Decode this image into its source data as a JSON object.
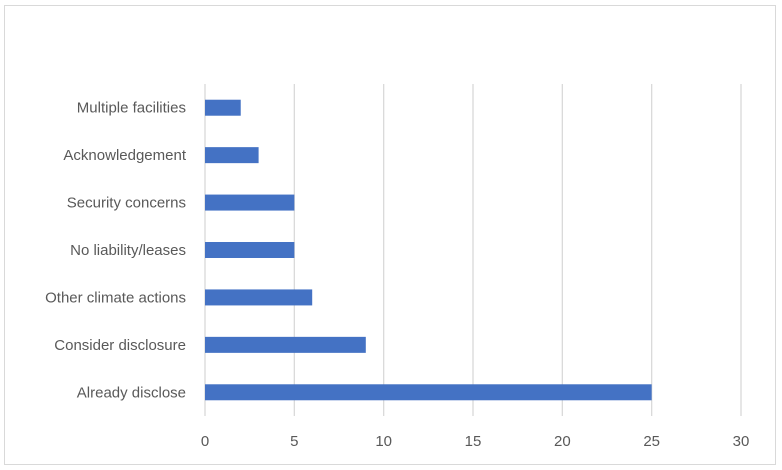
{
  "chart_data": {
    "type": "bar",
    "orientation": "horizontal",
    "categories": [
      "Multiple facilities",
      "Acknowledgement",
      "Security concerns",
      "No liability/leases",
      "Other climate actions",
      "Consider disclosure",
      "Already disclose"
    ],
    "values": [
      2,
      3,
      5,
      5,
      6,
      9,
      25
    ],
    "xlim": [
      0,
      30
    ],
    "xticks": [
      "0",
      "5",
      "10",
      "15",
      "20",
      "25",
      "30"
    ],
    "grid": "vertical",
    "legend": "none",
    "title": "",
    "xlabel": "",
    "ylabel": ""
  },
  "colors": {
    "bar": "#4472c4",
    "grid": "#d9d9d9",
    "text": "#595959"
  }
}
